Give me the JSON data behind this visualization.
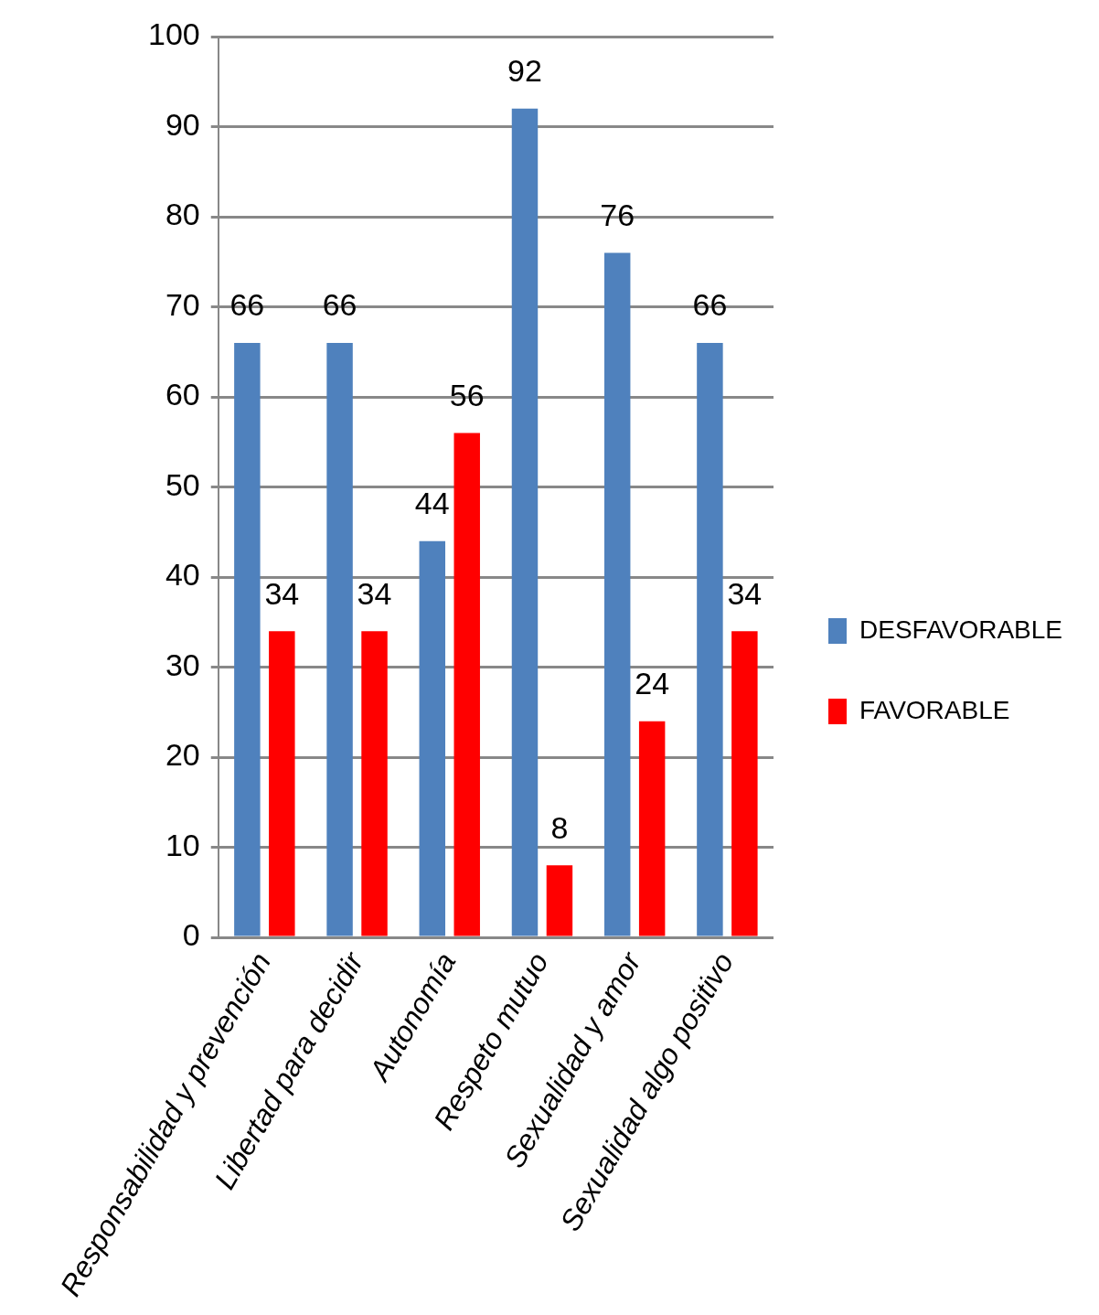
{
  "chart_data": {
    "type": "bar",
    "categories": [
      "Responsabilidad y prevención",
      "Libertad para decidir",
      "Autonomía",
      "Respeto mutuo",
      "Sexualidad y amor",
      "Sexualidad algo positivo"
    ],
    "series": [
      {
        "name": "DESFAVORABLE",
        "color": "#4f81bd",
        "values": [
          66,
          66,
          44,
          92,
          76,
          66
        ]
      },
      {
        "name": "FAVORABLE",
        "color": "#ff0000",
        "values": [
          34,
          34,
          56,
          8,
          24,
          34
        ]
      }
    ],
    "ylim": [
      0,
      100
    ],
    "yticks": [
      0,
      10,
      20,
      30,
      40,
      50,
      60,
      70,
      80,
      90,
      100
    ],
    "grid": "y",
    "legend": "right",
    "data_labels": true
  }
}
